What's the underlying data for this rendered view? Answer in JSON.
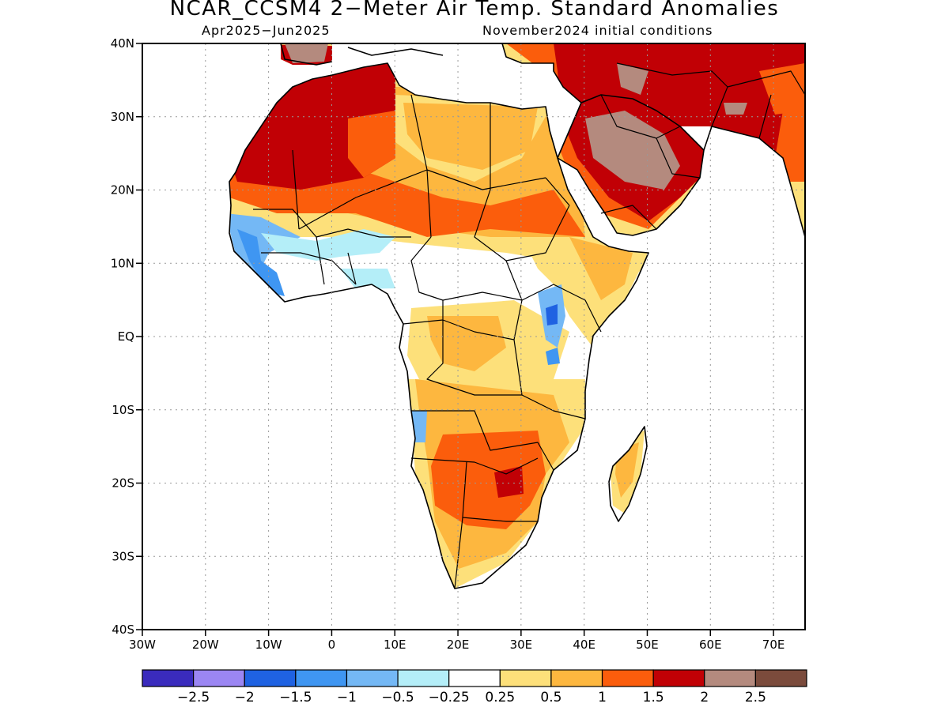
{
  "title": "NCAR_CCSM4 2−Meter Air Temp. Standard Anomalies",
  "subtitle_left": "Apr2025−Jun2025",
  "subtitle_right": "November2024 initial conditions",
  "map": {
    "lon_range": [
      -30,
      75
    ],
    "lat_range": [
      -40,
      40
    ],
    "lat_ticks": [
      {
        "value": 40,
        "label": "40N"
      },
      {
        "value": 30,
        "label": "30N"
      },
      {
        "value": 20,
        "label": "20N"
      },
      {
        "value": 10,
        "label": "10N"
      },
      {
        "value": 0,
        "label": "EQ"
      },
      {
        "value": -10,
        "label": "10S"
      },
      {
        "value": -20,
        "label": "20S"
      },
      {
        "value": -30,
        "label": "30S"
      },
      {
        "value": -40,
        "label": "40S"
      }
    ],
    "lon_ticks": [
      {
        "value": -30,
        "label": "30W"
      },
      {
        "value": -20,
        "label": "20W"
      },
      {
        "value": -10,
        "label": "10W"
      },
      {
        "value": 0,
        "label": "0"
      },
      {
        "value": 10,
        "label": "10E"
      },
      {
        "value": 20,
        "label": "20E"
      },
      {
        "value": 30,
        "label": "30E"
      },
      {
        "value": 40,
        "label": "40E"
      },
      {
        "value": 50,
        "label": "50E"
      },
      {
        "value": 60,
        "label": "60E"
      },
      {
        "value": 70,
        "label": "70E"
      }
    ],
    "grid": true,
    "field": "2-meter air temperature standard anomaly"
  },
  "colorbar": {
    "colors": [
      "#3a2bbd",
      "#9b86f3",
      "#1f62e2",
      "#3f96f2",
      "#74b8f5",
      "#b4eef8",
      "#ffffff",
      "#fde07a",
      "#fdb73f",
      "#fb5d0c",
      "#c10005",
      "#b48a7e",
      "#7b4b3c"
    ],
    "labels": [
      "−2.5",
      "−2",
      "−1.5",
      "−1",
      "−0.5",
      "−0.25",
      "0.25",
      "0.5",
      "1",
      "1.5",
      "2",
      "2.5"
    ]
  }
}
